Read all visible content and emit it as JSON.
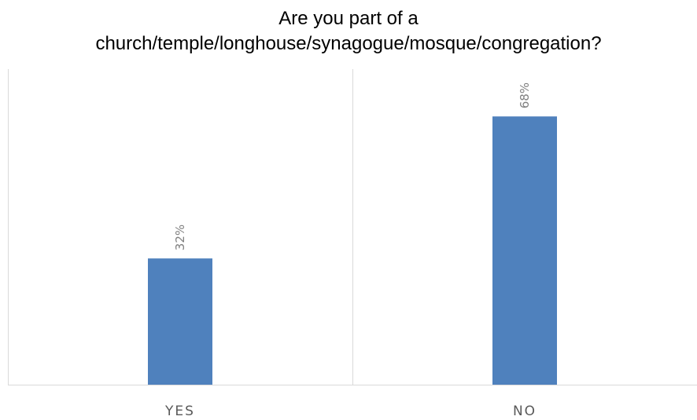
{
  "chart_data": {
    "type": "bar",
    "title_lines": [
      "Are you part of a",
      "church/temple/longhouse/synagogue/mosque/congregation?"
    ],
    "categories": [
      "YES",
      "NO"
    ],
    "values": [
      32,
      68
    ],
    "data_labels": [
      "32%",
      "68%"
    ],
    "value_unit": "%",
    "ylim": [
      0,
      80
    ],
    "bar_color": "#4F81BD",
    "grid": false,
    "legend": "none"
  }
}
